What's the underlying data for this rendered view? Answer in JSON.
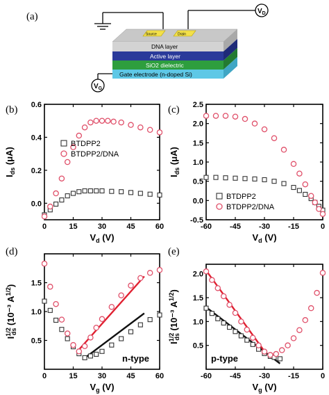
{
  "panel_a": {
    "label": "(a)",
    "layers": [
      "DNA layer",
      "Active layer",
      "SiO2 dielectric",
      "Gate electrode (n-doped Si)"
    ],
    "contacts": [
      "Source",
      "Drain"
    ],
    "vd_label": "V",
    "vd_sub": "D",
    "vg_label": "V",
    "vg_sub": "G",
    "colors": {
      "dna_top": "#c8c8c8",
      "dna_front": "#d0d0d0",
      "active": "#2a3a9a",
      "sio2": "#2e9e3e",
      "gate": "#5ec8e6",
      "contact": "#f2e04a"
    }
  },
  "chart_data": [
    {
      "id": "b",
      "label": "(b)",
      "type": "scatter",
      "xlabel": "V",
      "xlabel_sub": "d",
      "xlabel_unit": " (V)",
      "ylabel": "I",
      "ylabel_sub": "ds",
      "ylabel_unit": " (μA)",
      "xlim": [
        0,
        60
      ],
      "ylim": [
        -0.1,
        0.6
      ],
      "xticks": [
        0,
        15,
        30,
        45,
        60
      ],
      "yticks": [
        0.0,
        0.2,
        0.4,
        0.6
      ],
      "ytick_labels": [
        "0.0",
        "0.2",
        "0.4",
        "0.6"
      ],
      "legend_position": "center-left",
      "series": [
        {
          "name": "BTDPP2",
          "marker": "square",
          "color": "#333333",
          "x": [
            0,
            3,
            6,
            9,
            12,
            15,
            18,
            21,
            24,
            27,
            30,
            35,
            40,
            45,
            50,
            55,
            60
          ],
          "y": [
            -0.07,
            -0.04,
            -0.005,
            0.02,
            0.045,
            0.06,
            0.07,
            0.075,
            0.075,
            0.075,
            0.075,
            0.072,
            0.07,
            0.065,
            0.06,
            0.055,
            0.05
          ]
        },
        {
          "name": "BTDPP2/DNA",
          "marker": "circle",
          "color": "#e0506a",
          "x": [
            0,
            3,
            6,
            9,
            12,
            15,
            18,
            21,
            24,
            27,
            30,
            33,
            36,
            40,
            45,
            50,
            55,
            60
          ],
          "y": [
            -0.08,
            -0.02,
            0.06,
            0.15,
            0.25,
            0.34,
            0.41,
            0.46,
            0.49,
            0.5,
            0.5,
            0.5,
            0.495,
            0.49,
            0.475,
            0.46,
            0.445,
            0.43
          ]
        }
      ]
    },
    {
      "id": "c",
      "label": "(c)",
      "type": "scatter",
      "xlabel": "V",
      "xlabel_sub": "d",
      "xlabel_unit": " (V)",
      "ylabel": "I",
      "ylabel_sub": "ds",
      "ylabel_unit": " (μA)",
      "xlim": [
        -60,
        0
      ],
      "ylim": [
        -0.5,
        2.5
      ],
      "xticks": [
        -60,
        -45,
        -30,
        -15,
        0
      ],
      "yticks": [
        -0.5,
        0.0,
        0.5,
        1.0,
        1.5,
        2.0,
        2.5
      ],
      "ytick_labels": [
        "-0.5",
        "0.0",
        "0.5",
        "1.0",
        "1.5",
        "2.0",
        "2.5"
      ],
      "legend_position": "bottom-left",
      "series": [
        {
          "name": "BTDPP2",
          "marker": "square",
          "color": "#333333",
          "x": [
            -60,
            -55,
            -50,
            -45,
            -40,
            -35,
            -30,
            -25,
            -20,
            -15,
            -12,
            -9,
            -6,
            -4,
            -2,
            0
          ],
          "y": [
            0.6,
            0.6,
            0.59,
            0.58,
            0.57,
            0.56,
            0.54,
            0.5,
            0.44,
            0.34,
            0.26,
            0.16,
            0.05,
            -0.05,
            -0.15,
            -0.25
          ]
        },
        {
          "name": "BTDPP2/DNA",
          "marker": "circle",
          "color": "#e0506a",
          "x": [
            -60,
            -55,
            -50,
            -45,
            -40,
            -35,
            -30,
            -25,
            -20,
            -15,
            -12,
            -9,
            -6,
            -4,
            -2,
            0
          ],
          "y": [
            2.2,
            2.2,
            2.2,
            2.18,
            2.12,
            2.0,
            1.85,
            1.62,
            1.32,
            0.95,
            0.7,
            0.42,
            0.12,
            -0.05,
            -0.22,
            -0.35
          ]
        }
      ]
    },
    {
      "id": "d",
      "label": "(d)",
      "type": "scatter",
      "xlabel": "V",
      "xlabel_sub": "g",
      "xlabel_unit": " (V)",
      "ylabel": "I",
      "ylabel_sub": "ds",
      "ylabel_sup": "1/2",
      "ylabel_unit": " (10⁻³ A",
      "ylabel_unit_sup": "1/2",
      "ylabel_close": ")",
      "xlim": [
        0,
        60
      ],
      "ylim": [
        0,
        2.0
      ],
      "xticks": [
        0,
        15,
        30,
        45,
        60
      ],
      "yticks": [
        0.5,
        1.0,
        1.5
      ],
      "ytick_labels": [
        "0.5",
        "1.0",
        "1.5"
      ],
      "annotation": "n-type",
      "series": [
        {
          "name": "BTDPP2",
          "marker": "square",
          "color": "#333333",
          "x": [
            0,
            3,
            6,
            9,
            12,
            15,
            18,
            21,
            24,
            27,
            30,
            35,
            40,
            45,
            50,
            55,
            60
          ],
          "y": [
            1.18,
            1.02,
            0.85,
            0.69,
            0.53,
            0.39,
            0.27,
            0.2,
            0.23,
            0.26,
            0.31,
            0.42,
            0.53,
            0.65,
            0.77,
            0.86,
            0.94
          ]
        },
        {
          "name": "BTDPP2/DNA",
          "marker": "circle",
          "color": "#e0506a",
          "x": [
            0,
            3,
            6,
            9,
            12,
            15,
            18,
            21,
            24,
            27,
            30,
            35,
            40,
            45,
            50,
            55,
            60
          ],
          "y": [
            1.83,
            1.43,
            1.13,
            0.86,
            0.62,
            0.42,
            0.31,
            0.4,
            0.55,
            0.72,
            0.87,
            1.08,
            1.28,
            1.45,
            1.58,
            1.67,
            1.72
          ]
        }
      ],
      "fit_lines": [
        {
          "color": "#111111",
          "x": [
            22,
            52
          ],
          "y": [
            0.22,
            0.97
          ]
        },
        {
          "color": "#e02030",
          "x": [
            18,
            52
          ],
          "y": [
            0.34,
            1.61
          ]
        }
      ]
    },
    {
      "id": "e",
      "label": "(e)",
      "type": "scatter",
      "xlabel": "V",
      "xlabel_sub": "g",
      "xlabel_unit": " (V)",
      "ylabel": "I",
      "ylabel_sub": "ds",
      "ylabel_sup": "1/2",
      "ylabel_unit": " (10⁻³ A",
      "ylabel_unit_sup": "1/2",
      "ylabel_close": ")",
      "xlim": [
        -60,
        0
      ],
      "ylim": [
        0,
        2.2
      ],
      "xticks": [
        -60,
        -45,
        -30,
        -15,
        0
      ],
      "yticks": [
        0.5,
        1.0,
        1.5,
        2.0
      ],
      "ytick_labels": [
        "0.5",
        "1.0",
        "1.5",
        "2.0"
      ],
      "annotation": "p-type",
      "series": [
        {
          "name": "BTDPP2",
          "marker": "square",
          "color": "#333333",
          "x": [
            -60,
            -57,
            -54,
            -51,
            -48,
            -45,
            -42,
            -39,
            -36,
            -33,
            -30,
            -27,
            -25,
            -22
          ],
          "y": [
            1.28,
            1.17,
            1.06,
            0.97,
            0.88,
            0.79,
            0.7,
            0.61,
            0.52,
            0.42,
            0.33,
            0.27,
            0.25,
            0.22
          ]
        },
        {
          "name": "BTDPP2/DNA",
          "marker": "circle",
          "color": "#e0506a",
          "x": [
            -60,
            -57,
            -54,
            -51,
            -48,
            -45,
            -42,
            -39,
            -36,
            -33,
            -30,
            -27,
            -24,
            -21,
            -18,
            -15,
            -12,
            -9,
            -6,
            -3,
            0
          ],
          "y": [
            2.05,
            1.87,
            1.7,
            1.53,
            1.35,
            1.18,
            1.0,
            0.83,
            0.66,
            0.5,
            0.37,
            0.3,
            0.32,
            0.4,
            0.5,
            0.65,
            0.82,
            1.03,
            1.28,
            1.6,
            2.02
          ]
        }
      ],
      "fit_lines": [
        {
          "color": "#111111",
          "x": [
            -60,
            -22
          ],
          "y": [
            1.3,
            0.12
          ]
        },
        {
          "color": "#e02030",
          "x": [
            -60,
            -29
          ],
          "y": [
            2.07,
            0.32
          ]
        }
      ]
    }
  ]
}
